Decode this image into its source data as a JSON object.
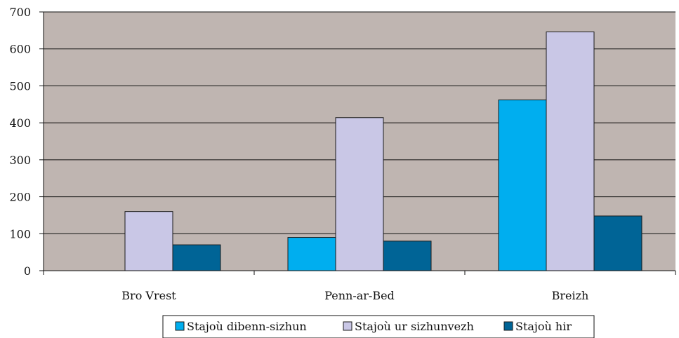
{
  "chart_data": {
    "type": "bar",
    "title": "",
    "xlabel": "",
    "ylabel": "",
    "categories": [
      "Bro Vrest",
      "Penn-ar-Bed",
      "Breizh"
    ],
    "series": [
      {
        "name": "Stajoù dibenn-sizhun",
        "values": [
          0,
          90,
          462
        ],
        "color": "#00aeef"
      },
      {
        "name": "Stajoù ur sizhunvezh",
        "values": [
          160,
          414,
          646
        ],
        "color": "#c9c7e6"
      },
      {
        "name": "Stajoù hir",
        "values": [
          70,
          80,
          148
        ],
        "color": "#006496"
      }
    ],
    "ylim": [
      0,
      700
    ],
    "yticks": [
      0,
      100,
      200,
      300,
      400,
      500,
      600,
      700
    ],
    "grid": true,
    "legend_position": "bottom",
    "plot_background": "#bfb5b1"
  }
}
